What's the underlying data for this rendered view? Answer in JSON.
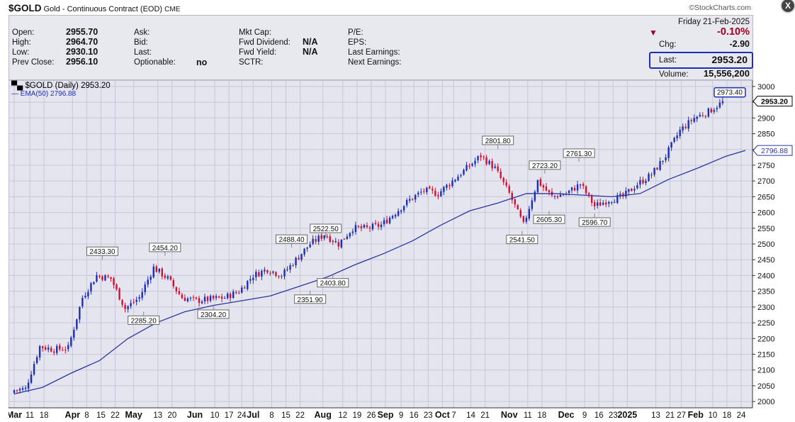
{
  "header": {
    "symbol": "$GOLD",
    "description": "Gold - Continuous Contract (EOD)",
    "exchange": "CME",
    "source": "©StockCharts.com"
  },
  "close_glyph": "X",
  "info": {
    "date": "Friday  21-Feb-2025",
    "pct_change": "-0.10%",
    "col1": [
      {
        "label": "Open:",
        "value": "2955.70"
      },
      {
        "label": "High:",
        "value": "2964.70"
      },
      {
        "label": "Low:",
        "value": "2930.10"
      },
      {
        "label": "Prev Close:",
        "value": "2956.10"
      }
    ],
    "col2": [
      {
        "label": "Ask:",
        "value": ""
      },
      {
        "label": "Bid:",
        "value": ""
      },
      {
        "label": "Last:",
        "value": ""
      },
      {
        "label": "Optionable:",
        "value": "no"
      }
    ],
    "col3": [
      {
        "label": "Mkt Cap:",
        "value": ""
      },
      {
        "label": "Fwd Dividend:",
        "value": "N/A"
      },
      {
        "label": "Fwd Yield:",
        "value": "N/A"
      },
      {
        "label": "SCTR:",
        "value": ""
      }
    ],
    "col4": [
      {
        "label": "P/E:",
        "value": ""
      },
      {
        "label": "EPS:",
        "value": ""
      },
      {
        "label": "Last Earnings:",
        "value": ""
      },
      {
        "label": "Next Earnings:",
        "value": ""
      }
    ],
    "col5": [
      {
        "label": "Chg:",
        "value": "-2.90"
      },
      {
        "label": "Last:",
        "value": "2953.20"
      },
      {
        "label": "Volume:",
        "value": "15,556,200"
      }
    ],
    "colors": {
      "down": "#a00020",
      "box": "#1c2fb5"
    }
  },
  "chart_data": {
    "type": "candlestick",
    "legend": [
      {
        "text": "$GOLD (Daily) 2953.20",
        "color": "#000000"
      },
      {
        "text": "EMA(50) 2796.88",
        "color": "#1c2fb5"
      }
    ],
    "ylim": [
      1980,
      3020
    ],
    "yticks": [
      2000,
      2050,
      2100,
      2150,
      2200,
      2250,
      2300,
      2350,
      2400,
      2450,
      2500,
      2550,
      2600,
      2650,
      2700,
      2750,
      2800,
      2850,
      2900,
      2950,
      3000
    ],
    "xlabels": [
      {
        "t": "Mar",
        "x": 0.5,
        "bold": true
      },
      {
        "t": "11",
        "x": 1.6
      },
      {
        "t": "18",
        "x": 2.6
      },
      {
        "t": "Apr",
        "x": 4.6,
        "bold": true
      },
      {
        "t": "8",
        "x": 5.6
      },
      {
        "t": "15",
        "x": 6.6
      },
      {
        "t": "22",
        "x": 7.6
      },
      {
        "t": "May",
        "x": 8.9,
        "bold": true
      },
      {
        "t": "13",
        "x": 10.6
      },
      {
        "t": "20",
        "x": 11.6
      },
      {
        "t": "Jun",
        "x": 13.2,
        "bold": true
      },
      {
        "t": "10",
        "x": 14.6
      },
      {
        "t": "17",
        "x": 15.6
      },
      {
        "t": "24",
        "x": 16.5
      },
      {
        "t": "Jul",
        "x": 17.3,
        "bold": true
      },
      {
        "t": "8",
        "x": 18.6
      },
      {
        "t": "15",
        "x": 19.6
      },
      {
        "t": "22",
        "x": 20.6
      },
      {
        "t": "Aug",
        "x": 22.2,
        "bold": true
      },
      {
        "t": "12",
        "x": 23.6
      },
      {
        "t": "19",
        "x": 24.6
      },
      {
        "t": "26",
        "x": 25.6
      },
      {
        "t": "Sep",
        "x": 26.6,
        "bold": true
      },
      {
        "t": "9",
        "x": 27.7
      },
      {
        "t": "16",
        "x": 28.6
      },
      {
        "t": "23",
        "x": 29.6
      },
      {
        "t": "Oct",
        "x": 30.6,
        "bold": true
      },
      {
        "t": "7",
        "x": 31.4
      },
      {
        "t": "14",
        "x": 32.6
      },
      {
        "t": "21",
        "x": 33.6
      },
      {
        "t": "Nov",
        "x": 35.3,
        "bold": true
      },
      {
        "t": "11",
        "x": 36.6
      },
      {
        "t": "18",
        "x": 37.6
      },
      {
        "t": "Dec",
        "x": 39.3,
        "bold": true
      },
      {
        "t": "9",
        "x": 40.6
      },
      {
        "t": "16",
        "x": 41.6
      },
      {
        "t": "23",
        "x": 42.6
      },
      {
        "t": "2025",
        "x": 43.6,
        "bold": true
      },
      {
        "t": "13",
        "x": 45.6
      },
      {
        "t": "21",
        "x": 46.6
      },
      {
        "t": "27",
        "x": 47.4
      },
      {
        "t": "Feb",
        "x": 48.4,
        "bold": true
      },
      {
        "t": "10",
        "x": 49.6
      },
      {
        "t": "18",
        "x": 50.6
      },
      {
        "t": "24",
        "x": 51.6
      }
    ],
    "week_closes": [
      2035,
      2040,
      2175,
      2165,
      2170,
      2330,
      2400,
      2390,
      2295,
      2330,
      2425,
      2390,
      2330,
      2320,
      2325,
      2330,
      2350,
      2400,
      2420,
      2400,
      2450,
      2500,
      2530,
      2500,
      2550,
      2550,
      2560,
      2600,
      2640,
      2670,
      2660,
      2700,
      2740,
      2780,
      2740,
      2660,
      2560,
      2700,
      2650,
      2660,
      2690,
      2620,
      2640,
      2650,
      2690,
      2720,
      2780,
      2860,
      2900,
      2920,
      2950
    ],
    "ema_points": [
      [
        0,
        2024
      ],
      [
        2,
        2045
      ],
      [
        4,
        2090
      ],
      [
        6,
        2130
      ],
      [
        8,
        2200
      ],
      [
        10,
        2250
      ],
      [
        12,
        2285
      ],
      [
        14,
        2305
      ],
      [
        16,
        2320
      ],
      [
        18,
        2335
      ],
      [
        20,
        2365
      ],
      [
        22,
        2395
      ],
      [
        24,
        2435
      ],
      [
        26,
        2470
      ],
      [
        28,
        2510
      ],
      [
        30,
        2560
      ],
      [
        32,
        2605
      ],
      [
        34,
        2630
      ],
      [
        36,
        2660
      ],
      [
        38,
        2660
      ],
      [
        40,
        2655
      ],
      [
        42,
        2650
      ],
      [
        44,
        2660
      ],
      [
        46,
        2705
      ],
      [
        48,
        2740
      ],
      [
        50,
        2778
      ],
      [
        51.4,
        2796.88
      ]
    ],
    "annotations": [
      {
        "text": "2433.30",
        "x": 6.2,
        "y": 2450,
        "pos": "above"
      },
      {
        "text": "2454.20",
        "x": 10.6,
        "y": 2462,
        "pos": "above"
      },
      {
        "text": "2285.20",
        "x": 9.1,
        "y": 2285.2,
        "pos": "below"
      },
      {
        "text": "2304.20",
        "x": 14.0,
        "y": 2304.2,
        "pos": "below"
      },
      {
        "text": "2488.40",
        "x": 19.5,
        "y": 2488.4,
        "pos": "above"
      },
      {
        "text": "2522.50",
        "x": 21.9,
        "y": 2522.5,
        "pos": "above"
      },
      {
        "text": "2351.90",
        "x": 20.8,
        "y": 2351.9,
        "pos": "below"
      },
      {
        "text": "2403.80",
        "x": 22.4,
        "y": 2403.8,
        "pos": "below"
      },
      {
        "text": "2801.80",
        "x": 34.0,
        "y": 2801.8,
        "pos": "above"
      },
      {
        "text": "2541.50",
        "x": 35.7,
        "y": 2541.5,
        "pos": "below"
      },
      {
        "text": "2723.20",
        "x": 37.3,
        "y": 2723.2,
        "pos": "above"
      },
      {
        "text": "2605.30",
        "x": 37.6,
        "y": 2605.3,
        "pos": "below"
      },
      {
        "text": "2761.30",
        "x": 39.7,
        "y": 2761.3,
        "pos": "above"
      },
      {
        "text": "2596.70",
        "x": 40.8,
        "y": 2596.7,
        "pos": "below"
      }
    ],
    "right_tags": [
      {
        "text": "2953.20",
        "y": 2953.2,
        "style": "close"
      },
      {
        "text": "2796.88",
        "y": 2796.88,
        "style": "ema"
      }
    ],
    "top_tag": {
      "text": "2973.40",
      "x": 50.3,
      "y": 2973.4
    },
    "colors": {
      "up": "#1c2fb5",
      "down": "#cc1133",
      "ema": "#2a36a0",
      "grid": "#c7c7d8",
      "bg": "#e5e5ef"
    }
  }
}
